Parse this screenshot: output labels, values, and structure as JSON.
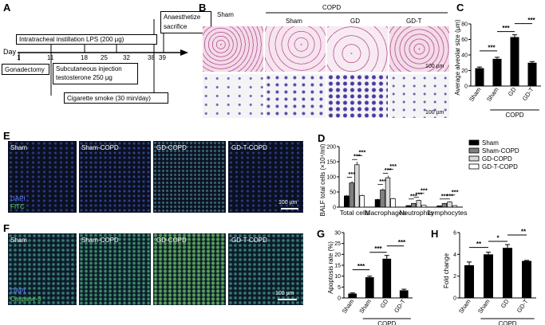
{
  "panels": {
    "A": {
      "letter": "A",
      "day_label": "Day",
      "days": [
        "1",
        "11",
        "18",
        "25",
        "32",
        "38",
        "39"
      ],
      "boxes": {
        "lps": "Intratracheal instillation LPS (200 µg)",
        "anaesthetize_1": "Anaesthetize",
        "anaesthetize_2": "sacrifice",
        "gonadectomy": "Gonadectomy",
        "subcut_1": "Subcutaneous injection",
        "subcut_2": "testosterone 250 µg",
        "smoke": "Cigarette smoke (30 min/day)"
      }
    },
    "B": {
      "letter": "B",
      "group_copd": "COPD",
      "columns": [
        "Sham",
        "Sham",
        "GD",
        "GD-T"
      ],
      "scale_1": "100 µm",
      "scale_2": "100 µm"
    },
    "C": {
      "letter": "C"
    },
    "D": {
      "letter": "D"
    },
    "E": {
      "letter": "E",
      "labels": [
        "Sham",
        "Sham-COPD",
        "GD-COPD",
        "GD-T-COPD"
      ],
      "stain_1": "DAPI",
      "stain_2": "FITC",
      "scale": "100 µm"
    },
    "F": {
      "letter": "F",
      "labels": [
        "Sham",
        "Sham-COPD",
        "GD-COPD",
        "GD-T-COPD"
      ],
      "stain_1": "DAPI",
      "stain_2": "Caspase-3",
      "scale": "100 µm"
    },
    "G": {
      "letter": "G"
    },
    "H": {
      "letter": "H"
    }
  },
  "chart_data": [
    {
      "id": "C",
      "type": "bar",
      "categories": [
        "Sham",
        "Sham",
        "GD",
        "GD-T"
      ],
      "group_label": "COPD",
      "values": [
        23,
        35,
        63,
        30
      ],
      "errors": [
        1.5,
        2,
        3,
        1.5
      ],
      "colors": [
        "#000000",
        "#000000",
        "#000000",
        "#000000"
      ],
      "ylabel": "Average alveolar size (µm)",
      "ylim": [
        0,
        80
      ],
      "yticks": [
        0,
        20,
        40,
        60,
        80
      ],
      "significance": [
        "***",
        "***",
        "***"
      ]
    },
    {
      "id": "D",
      "type": "bar",
      "categories": [
        "Total cells",
        "Macrophages",
        "Neutrophils",
        "Lymphocytes"
      ],
      "ylabel": "BALF total cells (×10⁴/ml)",
      "ylim": [
        0,
        200
      ],
      "yticks": [
        0,
        50,
        100,
        150,
        200
      ],
      "series": [
        {
          "name": "Sham",
          "color": "#000000",
          "values": [
            37,
            25,
            5,
            4
          ]
        },
        {
          "name": "Sham-COPD",
          "color": "#7f7f7f",
          "values": [
            80,
            57,
            12,
            12
          ]
        },
        {
          "name": "GD-COPD",
          "color": "#d9d9d9",
          "values": [
            140,
            97,
            22,
            17
          ]
        },
        {
          "name": "GD-T-COPD",
          "color": "#ffffff",
          "values": [
            38,
            28,
            6,
            5
          ]
        }
      ],
      "significance_label": "***"
    },
    {
      "id": "G",
      "type": "bar",
      "categories": [
        "Sham",
        "Sham",
        "GD",
        "GD-T"
      ],
      "group_label": "COPD",
      "values": [
        2,
        9.5,
        18,
        3.5
      ],
      "errors": [
        0.3,
        0.5,
        1.5,
        0.5
      ],
      "colors": [
        "#000000",
        "#000000",
        "#000000",
        "#000000"
      ],
      "ylabel": "Apoptosis rate (%)",
      "ylim": [
        0,
        30
      ],
      "yticks": [
        0,
        5,
        10,
        15,
        20,
        25,
        30
      ],
      "significance": [
        "***",
        "***",
        "***"
      ]
    },
    {
      "id": "H",
      "type": "bar",
      "categories": [
        "Sham",
        "Sham",
        "GD",
        "GD-T"
      ],
      "group_label": "COPD",
      "values": [
        3.0,
        4.0,
        4.6,
        3.4
      ],
      "errors": [
        0.3,
        0.2,
        0.3,
        0.05
      ],
      "colors": [
        "#000000",
        "#000000",
        "#000000",
        "#000000"
      ],
      "ylabel": "Fold change",
      "ylim": [
        0,
        6
      ],
      "yticks": [
        0,
        2,
        4,
        6
      ],
      "significance": [
        "**",
        "*",
        "**"
      ]
    }
  ]
}
